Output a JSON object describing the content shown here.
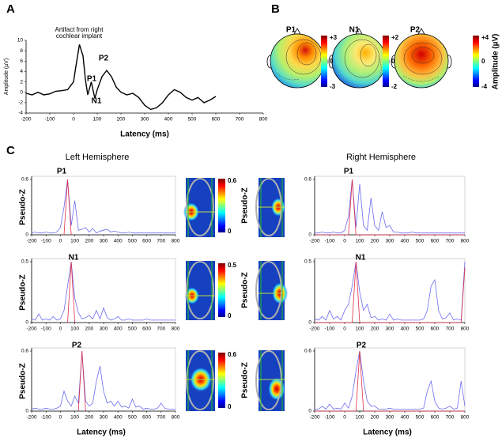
{
  "panels": {
    "a": "A",
    "b": "B",
    "c": "C"
  },
  "topomaps": {
    "items": [
      {
        "label": "P1",
        "max": "+3",
        "mid": "0",
        "min": "-3"
      },
      {
        "label": "N1",
        "max": "+2",
        "mid": "0",
        "min": "-2"
      },
      {
        "label": "P2",
        "max": "+4",
        "mid": "0",
        "min": "-4"
      }
    ],
    "unit_label": "Amplitude (µV)"
  },
  "hemispheres": {
    "left": "Left Hemisphere",
    "right": "Right Hemisphere"
  },
  "source_maps": [
    {
      "max": "0.6",
      "min": "0",
      "label": "Pseudo-Z"
    },
    {
      "max": "0.5",
      "min": "0",
      "label": "Pseudo-Z"
    },
    {
      "max": "0.6",
      "min": "0",
      "label": "Pseudo-Z"
    }
  ],
  "chart_data": [
    {
      "type": "line",
      "xlabel": "Latency (ms)",
      "ylabel": "Amplitude (µV)",
      "annotations": [
        "Artifact from right",
        "cochlear implant",
        "P1",
        "N1",
        "P2"
      ],
      "x": [
        -200,
        -175,
        -150,
        -125,
        -100,
        -75,
        -50,
        -25,
        0,
        10,
        25,
        40,
        50,
        60,
        75,
        90,
        100,
        120,
        140,
        160,
        180,
        200,
        225,
        250,
        275,
        300,
        325,
        350,
        375,
        400,
        425,
        450,
        475,
        500,
        525,
        550,
        575,
        600
      ],
      "series": [
        {
          "color": "#000000",
          "values": [
            -0.2,
            -0.5,
            0,
            -0.5,
            -0.3,
            0.2,
            0.3,
            0.5,
            2,
            5,
            9.2,
            7,
            2.5,
            -0.5,
            2,
            -1.2,
            0.5,
            3,
            4.2,
            3,
            1,
            0,
            -0.5,
            -0.2,
            -1,
            -2.5,
            -3.3,
            -3,
            -2,
            -0.5,
            0.5,
            0,
            -1,
            -1.5,
            -1,
            -2,
            -1.5,
            -0.8
          ]
        }
      ],
      "xlim": [
        -200,
        800
      ],
      "xticks": [
        -200,
        -100,
        0,
        100,
        200,
        300,
        400,
        500,
        600,
        700,
        800
      ],
      "ylim": [
        -4,
        10
      ],
      "yticks": [
        -4,
        -2,
        0,
        2,
        4,
        6,
        8,
        10
      ]
    },
    {
      "type": "line",
      "ylabel": "Pseudo-Z",
      "annotations": [
        "P1"
      ],
      "x": [
        -200,
        -175,
        -150,
        -125,
        -100,
        -75,
        -50,
        -25,
        0,
        25,
        50,
        75,
        100,
        125,
        150,
        175,
        200,
        225,
        250,
        275,
        300,
        325,
        350,
        375,
        400,
        425,
        450,
        475,
        500,
        525,
        550,
        575,
        600,
        625,
        650,
        675,
        700,
        725,
        750,
        775,
        800
      ],
      "series": [
        {
          "color": "#6b6bf0",
          "values": [
            0.02,
            0.03,
            0.02,
            0.02,
            0.03,
            0.02,
            0.02,
            0.03,
            0.08,
            0.3,
            0.6,
            0.1,
            0.37,
            0.05,
            0.06,
            0.08,
            0.03,
            0.07,
            0.02,
            0.04,
            0.05,
            0.06,
            0.03,
            0.04,
            0.03,
            0.02,
            0.02,
            0.03,
            0.02,
            0.02,
            0.02,
            0.02,
            0.02,
            0.02,
            0.02,
            0.02,
            0.02,
            0.02,
            0.02,
            0.02,
            0.02
          ]
        },
        {
          "color": "#e0304a",
          "values": [
            null,
            null,
            null,
            null,
            null,
            null,
            null,
            null,
            null,
            0,
            0.6,
            0,
            null,
            null,
            null,
            null,
            null,
            null,
            null,
            null,
            null,
            null,
            null,
            null,
            null,
            null,
            null,
            null,
            null,
            null,
            null,
            null,
            null,
            null,
            null,
            null,
            null,
            null,
            null,
            null,
            null
          ]
        }
      ],
      "xlim": [
        -200,
        800
      ],
      "xticks": [
        -200,
        -100,
        0,
        100,
        200,
        300,
        400,
        500,
        600,
        700,
        800
      ],
      "ylim": [
        0,
        0.6
      ],
      "yticks": [
        0,
        0.6
      ]
    },
    {
      "type": "line",
      "ylabel": "Pseudo-Z",
      "annotations": [
        "N1"
      ],
      "x": [
        -200,
        -175,
        -150,
        -125,
        -100,
        -75,
        -50,
        -25,
        0,
        25,
        50,
        75,
        100,
        125,
        150,
        175,
        200,
        225,
        250,
        275,
        300,
        325,
        350,
        375,
        400,
        425,
        450,
        475,
        500,
        525,
        550,
        575,
        600,
        625,
        650,
        675,
        700,
        725,
        750,
        775,
        800
      ],
      "series": [
        {
          "color": "#6b6bf0",
          "values": [
            0.03,
            0.02,
            0.07,
            0.02,
            0.03,
            0.02,
            0.05,
            0.02,
            0.03,
            0.1,
            0.3,
            0.5,
            0.2,
            0.08,
            0.03,
            0.04,
            0.06,
            0.03,
            0.1,
            0.03,
            0.12,
            0.04,
            0.02,
            0.03,
            0.05,
            0.02,
            0.02,
            0.03,
            0.02,
            0.02,
            0.02,
            0.02,
            0.03,
            0.02,
            0.02,
            0.02,
            0.02,
            0.02,
            0.02,
            0.02,
            0.02
          ]
        },
        {
          "color": "#e0304a",
          "values": [
            null,
            null,
            null,
            null,
            null,
            null,
            null,
            null,
            null,
            null,
            0,
            0.5,
            0,
            null,
            null,
            null,
            null,
            null,
            null,
            null,
            null,
            null,
            null,
            null,
            null,
            null,
            null,
            null,
            null,
            null,
            null,
            null,
            null,
            null,
            null,
            null,
            null,
            null,
            null,
            null,
            null
          ]
        }
      ],
      "xlim": [
        -200,
        800
      ],
      "xticks": [
        -200,
        -100,
        0,
        100,
        200,
        300,
        400,
        500,
        600,
        700,
        800
      ],
      "ylim": [
        0,
        0.5
      ],
      "yticks": [
        0,
        0.5
      ]
    },
    {
      "type": "line",
      "ylabel": "Pseudo-Z",
      "xlabel": "Latency (ms)",
      "annotations": [
        "P2"
      ],
      "x": [
        -200,
        -175,
        -150,
        -125,
        -100,
        -75,
        -50,
        -25,
        0,
        25,
        50,
        75,
        100,
        125,
        150,
        175,
        200,
        225,
        250,
        275,
        300,
        325,
        350,
        375,
        400,
        425,
        450,
        475,
        500,
        525,
        550,
        575,
        600,
        625,
        650,
        675,
        700,
        725,
        750,
        775,
        800
      ],
      "series": [
        {
          "color": "#6b6bf0",
          "values": [
            0.02,
            0.03,
            0.02,
            0.02,
            0.03,
            0.02,
            0.02,
            0.03,
            0.05,
            0.2,
            0.1,
            0.05,
            0.15,
            0.08,
            0.6,
            0.1,
            0.05,
            0.08,
            0.3,
            0.45,
            0.2,
            0.08,
            0.1,
            0.05,
            0.1,
            0.04,
            0.05,
            0.03,
            0.12,
            0.04,
            0.05,
            0.02,
            0.03,
            0.02,
            0.02,
            0.03,
            0.08,
            0.03,
            0.02,
            0.02,
            0.02
          ]
        },
        {
          "color": "#e0304a",
          "values": [
            null,
            null,
            null,
            null,
            null,
            null,
            null,
            null,
            null,
            null,
            null,
            null,
            null,
            0,
            0.6,
            0,
            null,
            null,
            null,
            null,
            null,
            null,
            null,
            null,
            null,
            null,
            null,
            null,
            null,
            null,
            null,
            null,
            null,
            null,
            null,
            null,
            null,
            null,
            null,
            null,
            null
          ]
        }
      ],
      "xlim": [
        -200,
        800
      ],
      "xticks": [
        -200,
        -100,
        0,
        100,
        200,
        300,
        400,
        500,
        600,
        700,
        800
      ],
      "ylim": [
        0,
        0.6
      ],
      "yticks": [
        0,
        0.6
      ]
    },
    {
      "type": "line",
      "annotations": [
        "P1"
      ],
      "x": [
        -200,
        -175,
        -150,
        -125,
        -100,
        -75,
        -50,
        -25,
        0,
        25,
        50,
        75,
        100,
        125,
        150,
        175,
        200,
        225,
        250,
        275,
        300,
        325,
        350,
        375,
        400,
        425,
        450,
        475,
        500,
        525,
        550,
        575,
        600,
        625,
        650,
        675,
        700,
        725,
        750,
        775,
        800
      ],
      "series": [
        {
          "color": "#6b6bf0",
          "values": [
            0.02,
            0.02,
            0.03,
            0.02,
            0.02,
            0.03,
            0.02,
            0.02,
            0.05,
            0.2,
            0.6,
            0.08,
            0.55,
            0.1,
            0.05,
            0.4,
            0.1,
            0.05,
            0.25,
            0.08,
            0.1,
            0.03,
            0.03,
            0.02,
            0.02,
            0.02,
            0.03,
            0.02,
            0.02,
            0.02,
            0.02,
            0.02,
            0.02,
            0.02,
            0.02,
            0.02,
            0.02,
            0.02,
            0.02,
            0.02,
            0.02
          ]
        },
        {
          "color": "#e0304a",
          "values": [
            0,
            0,
            0,
            0,
            0,
            0,
            0,
            0,
            0,
            0,
            0.6,
            0,
            0,
            0,
            0,
            0,
            0,
            0,
            0,
            0,
            0,
            0,
            0,
            0,
            0,
            0,
            0,
            0,
            0,
            0,
            0,
            0,
            0,
            0,
            0,
            0,
            0,
            0,
            0,
            0,
            0
          ]
        }
      ],
      "xlim": [
        -200,
        800
      ],
      "xticks": [
        -200,
        -100,
        0,
        100,
        200,
        300,
        400,
        500,
        600,
        700,
        800
      ],
      "ylim": [
        0,
        0.6
      ],
      "yticks": [
        0,
        0.6
      ]
    },
    {
      "type": "line",
      "annotations": [
        "N1"
      ],
      "x": [
        -200,
        -175,
        -150,
        -125,
        -100,
        -75,
        -50,
        -25,
        0,
        25,
        50,
        75,
        100,
        125,
        150,
        175,
        200,
        225,
        250,
        275,
        300,
        325,
        350,
        375,
        400,
        425,
        450,
        475,
        500,
        525,
        550,
        575,
        600,
        625,
        650,
        675,
        700,
        725,
        750,
        775,
        800
      ],
      "series": [
        {
          "color": "#6b6bf0",
          "values": [
            0.03,
            0.02,
            0.05,
            0.02,
            0.1,
            0.03,
            0.05,
            0.02,
            0.1,
            0.15,
            0.3,
            0.5,
            0.25,
            0.1,
            0.15,
            0.04,
            0.05,
            0.02,
            0.03,
            0.02,
            0.07,
            0.02,
            0.03,
            0.02,
            0.02,
            0.02,
            0.02,
            0.02,
            0.02,
            0.03,
            0.1,
            0.3,
            0.35,
            0.1,
            0.03,
            0.04,
            0.08,
            0.02,
            0.03,
            0.02,
            0.5
          ]
        },
        {
          "color": "#e0304a",
          "values": [
            0,
            0,
            0,
            0,
            0,
            0,
            0,
            0,
            0,
            0,
            0,
            0.5,
            0,
            0,
            0,
            0,
            0,
            0,
            0,
            0,
            0,
            0,
            0,
            0,
            0,
            0,
            0,
            0,
            0,
            0,
            0,
            0,
            0,
            0,
            0,
            0,
            0,
            0,
            0,
            0,
            0.45
          ]
        }
      ],
      "xlim": [
        -200,
        800
      ],
      "xticks": [
        -200,
        -100,
        0,
        100,
        200,
        300,
        400,
        500,
        600,
        700,
        800
      ],
      "ylim": [
        0,
        0.5
      ],
      "yticks": [
        0,
        0.5
      ]
    },
    {
      "type": "line",
      "xlabel": "Latency (ms)",
      "annotations": [
        "P2"
      ],
      "x": [
        -200,
        -175,
        -150,
        -125,
        -100,
        -75,
        -50,
        -25,
        0,
        25,
        50,
        75,
        100,
        125,
        150,
        175,
        200,
        225,
        250,
        275,
        300,
        325,
        350,
        375,
        400,
        425,
        450,
        475,
        500,
        525,
        550,
        575,
        600,
        625,
        650,
        675,
        700,
        725,
        750,
        775,
        800
      ],
      "series": [
        {
          "color": "#6b6bf0",
          "values": [
            0.02,
            0.02,
            0.05,
            0.02,
            0.07,
            0.02,
            0.03,
            0.02,
            0.08,
            0.03,
            0.15,
            0.4,
            0.6,
            0.3,
            0.1,
            0.05,
            0.05,
            0.02,
            0.02,
            0.02,
            0.03,
            0.02,
            0.02,
            0.02,
            0.02,
            0.02,
            0.02,
            0.02,
            0.02,
            0.03,
            0.2,
            0.3,
            0.1,
            0.03,
            0.02,
            0.03,
            0.05,
            0.02,
            0.03,
            0.3,
            0.05
          ]
        },
        {
          "color": "#e0304a",
          "values": [
            0,
            0,
            0,
            0,
            0,
            0,
            0,
            0,
            0,
            0,
            0,
            0,
            0.6,
            0,
            0,
            0,
            0,
            0,
            0,
            0,
            0,
            0,
            0,
            0,
            0,
            0,
            0,
            0,
            0,
            0,
            0,
            0,
            0,
            0,
            0,
            0,
            0,
            0,
            0,
            0,
            0
          ]
        }
      ],
      "xlim": [
        -200,
        800
      ],
      "xticks": [
        -200,
        -100,
        0,
        100,
        200,
        300,
        400,
        500,
        600,
        700,
        800
      ],
      "ylim": [
        0,
        0.6
      ],
      "yticks": [
        0,
        0.6
      ]
    }
  ]
}
